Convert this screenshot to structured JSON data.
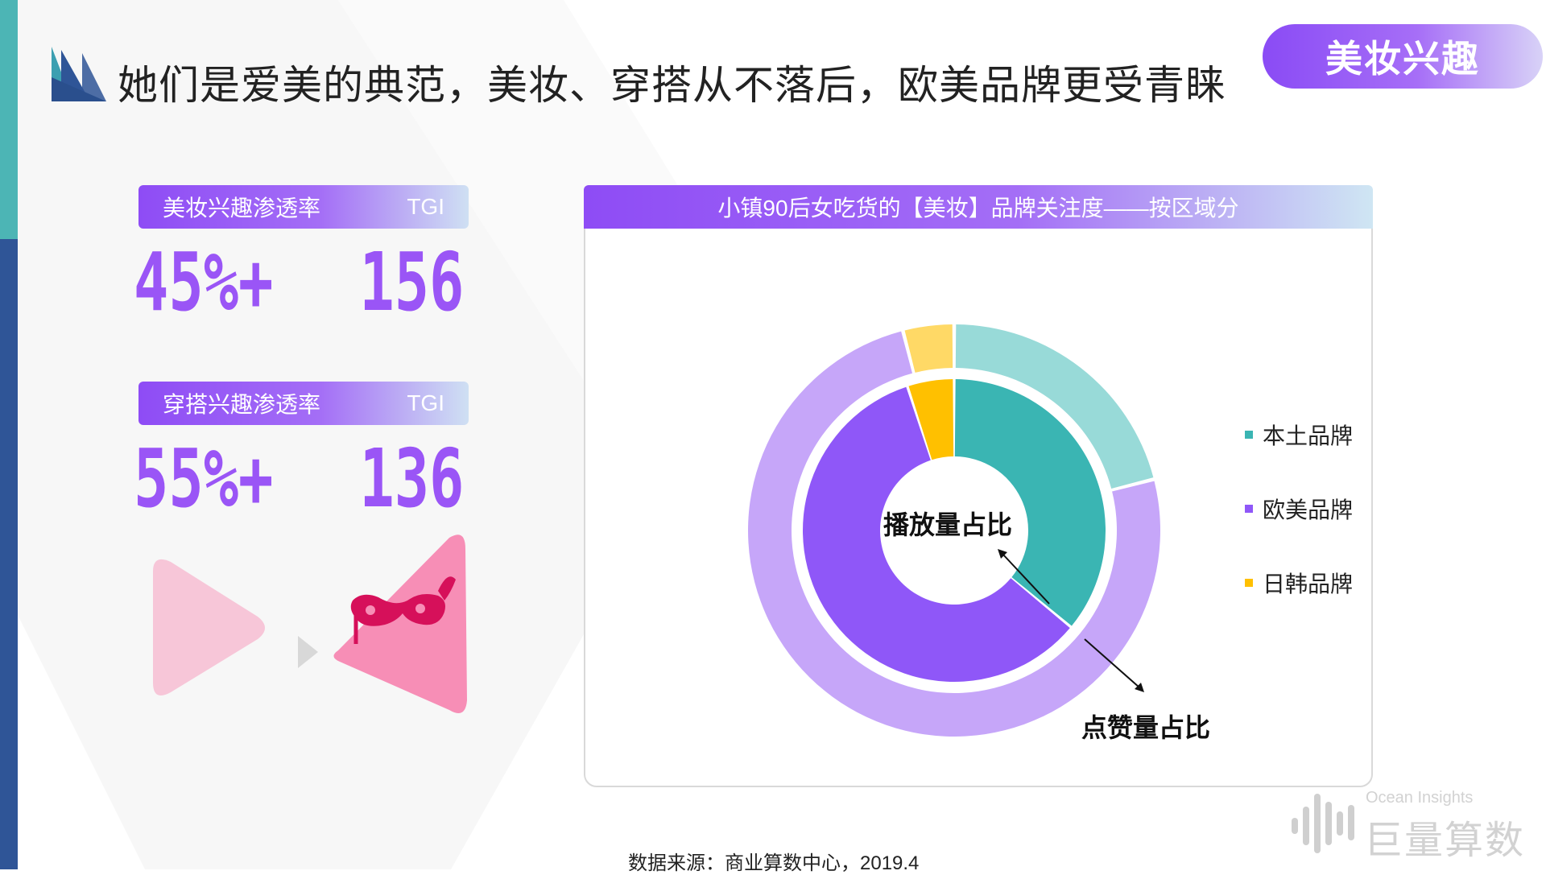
{
  "header": {
    "title": "她们是爱美的典范，美妆、穿搭从不落后，欧美品牌更受青睐",
    "topic": "美妆兴趣"
  },
  "metrics": [
    {
      "label": "美妆兴趣渗透率",
      "tgi_label": "TGI",
      "rate": "45%+",
      "tgi": "156"
    },
    {
      "label": "穿搭兴趣渗透率",
      "tgi_label": "TGI",
      "rate": "55%+",
      "tgi": "136"
    }
  ],
  "chart_data": {
    "type": "pie",
    "title": "小镇90后女吃货的【美妆】品牌关注度——按区域分",
    "categories": [
      "本土品牌",
      "欧美品牌",
      "日韩品牌"
    ],
    "series": [
      {
        "name": "播放量占比",
        "values": [
          36,
          59,
          5
        ]
      },
      {
        "name": "点赞量占比",
        "values": [
          21,
          75,
          4
        ]
      }
    ],
    "colors": {
      "inner": [
        "#3ab5b3",
        "#8f57f8",
        "#ffc000"
      ],
      "outer": [
        "#98dad8",
        "#c6a6f9",
        "#ffd966"
      ]
    },
    "legend_position": "right"
  },
  "source": "数据来源：商业算数中心，2019.4",
  "brand": {
    "en": "Ocean Insights",
    "cn": "巨量算数"
  },
  "icons": {
    "header": "layered-triangle-logo",
    "decoration": "mask-icon",
    "brand": "bar-waves-icon"
  }
}
